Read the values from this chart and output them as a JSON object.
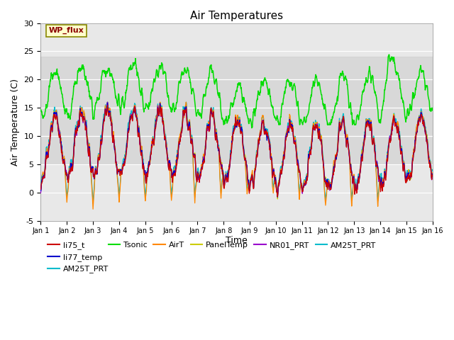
{
  "title": "Air Temperatures",
  "xlabel": "Time",
  "ylabel": "Air Temperature (C)",
  "ylim": [
    -5,
    30
  ],
  "xlim": [
    0,
    15
  ],
  "xtick_labels": [
    "Jan 1",
    "Jan 2",
    "Jan 3",
    "Jan 4",
    "Jan 5",
    "Jan 6",
    "Jan 7",
    "Jan 8",
    "Jan 9",
    "Jan 10",
    "Jan 11",
    "Jan 12",
    "Jan 13",
    "Jan 14",
    "Jan 15",
    "Jan 16"
  ],
  "ytick_vals": [
    -5,
    0,
    5,
    10,
    15,
    20,
    25,
    30
  ],
  "shaded_band": [
    5,
    24
  ],
  "wp_flux_label": "WP_flux",
  "wp_flux_color": "#8B0000",
  "wp_flux_bg": "#FFFFCC",
  "series": {
    "li75_t": {
      "color": "#CC0000",
      "lw": 1.0
    },
    "li77_temp": {
      "color": "#0000CC",
      "lw": 1.0
    },
    "Tsonic": {
      "color": "#00DD00",
      "lw": 1.2
    },
    "AirT": {
      "color": "#FF8800",
      "lw": 1.0
    },
    "PanelTemp": {
      "color": "#CCCC00",
      "lw": 1.0
    },
    "NR01_PRT": {
      "color": "#9900CC",
      "lw": 1.0
    },
    "AM25T_PRT": {
      "color": "#00BBCC",
      "lw": 1.2
    }
  },
  "legend_entries": [
    {
      "label": "li75_t",
      "color": "#CC0000"
    },
    {
      "label": "li77_temp",
      "color": "#0000CC"
    },
    {
      "label": "Tsonic",
      "color": "#00DD00"
    },
    {
      "label": "AirT",
      "color": "#FF8800"
    },
    {
      "label": "PanelTemp",
      "color": "#CCCC00"
    },
    {
      "label": "NR01_PRT",
      "color": "#9900CC"
    },
    {
      "label": "AM25T_PRT",
      "color": "#00BBCC"
    }
  ],
  "bg_color": "#E8E8E8",
  "fig_bg": "#FFFFFF",
  "grid_color": "#FFFFFF",
  "title_fontsize": 11,
  "axis_fontsize": 9
}
